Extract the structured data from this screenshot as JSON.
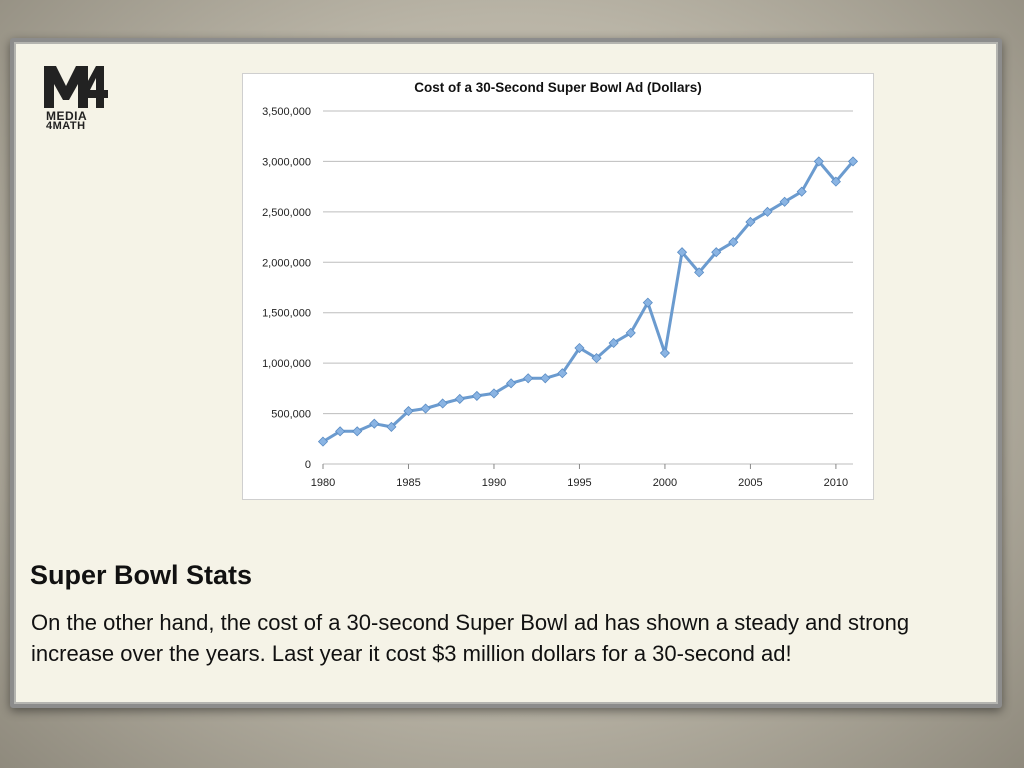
{
  "logo": {
    "mark": "M4",
    "line1": "MEDIA",
    "line2": "4MATH"
  },
  "slide": {
    "title": "Super Bowl Stats",
    "body": "On the other hand, the cost of a 30-second Super Bowl ad has shown a steady and strong increase over the years. Last year it cost $3 million dollars for a 30-second ad!"
  },
  "colors": {
    "series": "#6b9bcf",
    "marker": "#8ab4e3",
    "grid": "#bdbdbd"
  },
  "chart_data": {
    "type": "line",
    "title": "Cost of a 30-Second Super Bowl Ad (Dollars)",
    "xlabel": "",
    "ylabel": "",
    "xlim": [
      1980,
      2011
    ],
    "ylim": [
      0,
      3500000
    ],
    "x_ticks": [
      1980,
      1985,
      1990,
      1995,
      2000,
      2005,
      2010
    ],
    "y_ticks": [
      0,
      500000,
      1000000,
      1500000,
      2000000,
      2500000,
      3000000,
      3500000
    ],
    "y_tick_labels": [
      "0",
      "500,000",
      "1,000,000",
      "1,500,000",
      "2,000,000",
      "2,500,000",
      "3,000,000",
      "3,500,000"
    ],
    "grid": true,
    "legend": false,
    "x": [
      1980,
      1981,
      1982,
      1983,
      1984,
      1985,
      1986,
      1987,
      1988,
      1989,
      1990,
      1991,
      1992,
      1993,
      1994,
      1995,
      1996,
      1997,
      1998,
      1999,
      2000,
      2001,
      2002,
      2003,
      2004,
      2005,
      2006,
      2007,
      2008,
      2009,
      2010,
      2011
    ],
    "series": [
      {
        "values": [
          222000,
          324000,
          324000,
          400000,
          368000,
          525000,
          550000,
          600000,
          645000,
          675000,
          700000,
          800000,
          850000,
          850000,
          900000,
          1150000,
          1050000,
          1200000,
          1300000,
          1600000,
          1100000,
          2100000,
          1900000,
          2100000,
          2200000,
          2400000,
          2500000,
          2600000,
          2700000,
          3000000,
          2800000,
          3000000
        ]
      }
    ]
  }
}
